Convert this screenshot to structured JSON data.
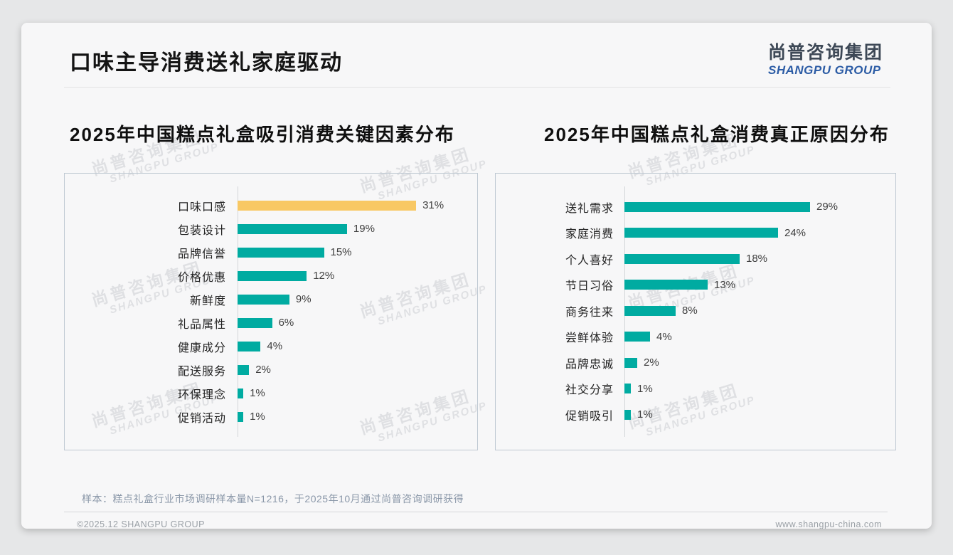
{
  "header": {
    "title": "口味主导消费送礼家庭驱动"
  },
  "logo": {
    "cn": "尚普咨询集团",
    "en": "SHANGPU GROUP"
  },
  "watermark": {
    "cn": "尚普咨询集团",
    "en": "SHANGPU GROUP"
  },
  "sections": {
    "left_title": "2025年中国糕点礼盒吸引消费关键因素分布",
    "right_title": "2025年中国糕点礼盒消费真正原因分布"
  },
  "chart_data": [
    {
      "type": "bar",
      "orientation": "horizontal",
      "title": "2025年中国糕点礼盒吸引消费关键因素分布",
      "categories": [
        "口味口感",
        "包装设计",
        "品牌信誉",
        "价格优惠",
        "新鲜度",
        "礼品属性",
        "健康成分",
        "配送服务",
        "环保理念",
        "促销活动"
      ],
      "values": [
        31,
        19,
        15,
        12,
        9,
        6,
        4,
        2,
        1,
        1
      ],
      "unit": "%",
      "xlim": [
        0,
        35
      ],
      "grid": false,
      "legend": "none",
      "highlight_index": 0,
      "bar_color": "#00aba1",
      "highlight_color": "#f8c864"
    },
    {
      "type": "bar",
      "orientation": "horizontal",
      "title": "2025年中国糕点礼盒消费真正原因分布",
      "categories": [
        "送礼需求",
        "家庭消费",
        "个人喜好",
        "节日习俗",
        "商务往来",
        "尝鲜体验",
        "品牌忠诚",
        "社交分享",
        "促销吸引"
      ],
      "values": [
        29,
        24,
        18,
        13,
        8,
        4,
        2,
        1,
        1
      ],
      "unit": "%",
      "xlim": [
        0,
        32
      ],
      "grid": false,
      "legend": "none",
      "highlight_index": -1,
      "bar_color": "#00aba1",
      "highlight_color": "#f8c864"
    }
  ],
  "footnote": "样本：糕点礼盒行业市场调研样本量N=1216，于2025年10月通过尚普咨询调研获得",
  "footer": {
    "copyright": "©2025.12 SHANGPU GROUP",
    "website": "www.shangpu-china.com"
  },
  "colors": {
    "teal": "#00aba1",
    "yellow": "#f8c864",
    "logo_blue": "#2c5ca5"
  }
}
